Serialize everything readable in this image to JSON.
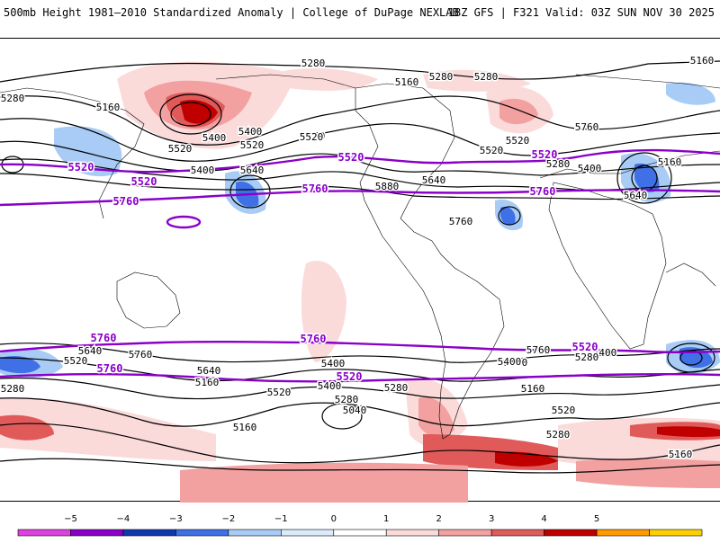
{
  "header": {
    "title": "500mb Height 1981–2010 Standardized Anomaly | College of DuPage NEXLAB",
    "run_info": "18Z GFS | F321 Valid: 03Z SUN NOV 30 2025"
  },
  "map": {
    "black_contour_labels": [
      "5280",
      "5160",
      "5280",
      "5160",
      "5280",
      "5160",
      "5280",
      "5520",
      "5400",
      "5520",
      "5280",
      "5520",
      "5400",
      "5520",
      "5400",
      "5280",
      "5640",
      "5760",
      "5880",
      "5640",
      "5760",
      "5640",
      "5400",
      "5160",
      "5520",
      "5640",
      "5760",
      "5400",
      "5280",
      "5520",
      "5640",
      "5160",
      "5040",
      "5280",
      "5160",
      "5520",
      "5400",
      "5640",
      "5760",
      "5280",
      "5400",
      "5280",
      "5160",
      "5520",
      "5400",
      "5280",
      "5160"
    ],
    "purple_contour_labels": [
      "5520",
      "5520",
      "5520",
      "5760",
      "5760",
      "5760",
      "5760",
      "5760",
      "5520",
      "5520",
      "5760",
      "5520"
    ],
    "colors": {
      "black_contour": "#000000",
      "purple_contour": "#8a00c8",
      "coastline": "#000000"
    }
  },
  "colorbar": {
    "ticks": [
      "−5",
      "−4",
      "−3",
      "−2",
      "−1",
      "0",
      "1",
      "2",
      "3",
      "4",
      "5"
    ],
    "bins": [
      "#e040e0",
      "#8a00c8",
      "#1038b0",
      "#3f70e6",
      "#a8ccf5",
      "#dcebfb",
      "#ffffff",
      "#fbdada",
      "#f2a0a0",
      "#e05a5a",
      "#c00000",
      "#ff9a00",
      "#ffd000"
    ]
  }
}
